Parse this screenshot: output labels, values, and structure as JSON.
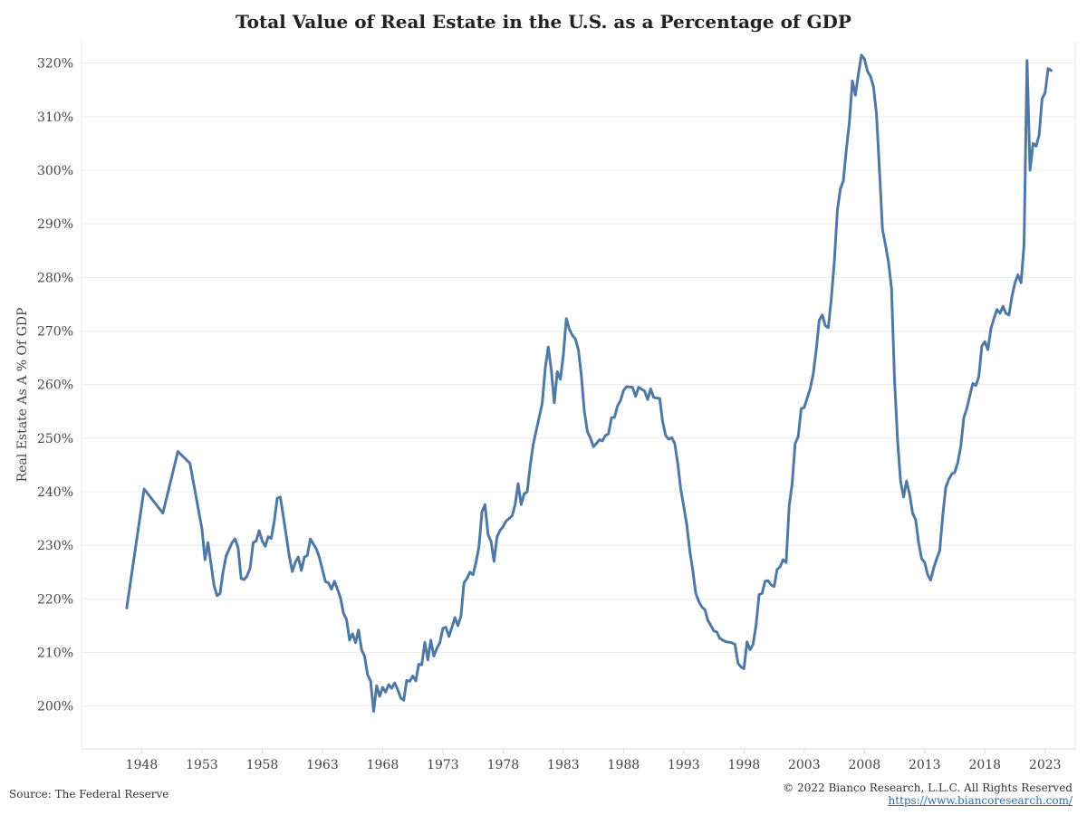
{
  "chart_data": {
    "type": "line",
    "title": "Total Value of Real Estate in the U.S. as a Percentage of GDP",
    "ylabel": "Real Estate As A % Of GDP",
    "xlabel": "",
    "xlim": [
      1943.0,
      2025.5
    ],
    "ylim": [
      192,
      324
    ],
    "x_ticks": [
      1948,
      1953,
      1958,
      1963,
      1968,
      1973,
      1978,
      1983,
      1988,
      1993,
      1998,
      2003,
      2008,
      2013,
      2018,
      2023
    ],
    "x_tick_labels": [
      "1948",
      "1953",
      "1958",
      "1963",
      "1968",
      "1973",
      "1978",
      "1983",
      "1988",
      "1993",
      "1998",
      "2003",
      "2008",
      "2013",
      "2018",
      "2023"
    ],
    "y_ticks": [
      200,
      210,
      220,
      230,
      240,
      250,
      260,
      270,
      280,
      290,
      300,
      310,
      320
    ],
    "y_tick_labels": [
      "200%",
      "210%",
      "220%",
      "230%",
      "240%",
      "250%",
      "260%",
      "270%",
      "280%",
      "290%",
      "300%",
      "310%",
      "320%"
    ],
    "grid": "horizontal",
    "line_color": "#4e79a7",
    "series": [
      {
        "values": [
          [
            1946.75,
            218.3
          ],
          [
            1948.2,
            240.5
          ],
          [
            1949.75,
            236
          ],
          [
            1951.0,
            247.5
          ],
          [
            1952.0,
            245.3
          ],
          [
            1953.0,
            233
          ],
          [
            1953.25,
            227.3
          ],
          [
            1953.5,
            230.5
          ],
          [
            1954.0,
            222.5
          ],
          [
            1954.25,
            220.6
          ],
          [
            1954.5,
            221
          ],
          [
            1954.75,
            225
          ],
          [
            1955.0,
            228
          ],
          [
            1955.5,
            230.5
          ],
          [
            1955.75,
            231.2
          ],
          [
            1956.0,
            229.5
          ],
          [
            1956.25,
            223.8
          ],
          [
            1956.5,
            223.6
          ],
          [
            1956.75,
            224.3
          ],
          [
            1957.0,
            225.8
          ],
          [
            1957.25,
            230.5
          ],
          [
            1957.5,
            230.8
          ],
          [
            1957.75,
            232.7
          ],
          [
            1958.0,
            230.8
          ],
          [
            1958.25,
            229.8
          ],
          [
            1958.5,
            231.6
          ],
          [
            1958.75,
            231.3
          ],
          [
            1959.0,
            234.5
          ],
          [
            1959.25,
            238.8
          ],
          [
            1959.5,
            239
          ],
          [
            1959.75,
            235.5
          ],
          [
            1960.0,
            231.8
          ],
          [
            1960.25,
            227.9
          ],
          [
            1960.5,
            225.1
          ],
          [
            1960.75,
            226.8
          ],
          [
            1961.0,
            227.8
          ],
          [
            1961.25,
            225.3
          ],
          [
            1961.5,
            227.8
          ],
          [
            1961.75,
            228.1
          ],
          [
            1962.0,
            231.2
          ],
          [
            1962.5,
            229.3
          ],
          [
            1962.75,
            227.7
          ],
          [
            1963.25,
            223.2
          ],
          [
            1963.5,
            223
          ],
          [
            1963.75,
            221.8
          ],
          [
            1964.0,
            223.3
          ],
          [
            1964.25,
            221.8
          ],
          [
            1964.5,
            220.2
          ],
          [
            1964.75,
            217.3
          ],
          [
            1965.0,
            216.2
          ],
          [
            1965.25,
            212.3
          ],
          [
            1965.5,
            213.5
          ],
          [
            1965.75,
            211.8
          ],
          [
            1966.0,
            214.2
          ],
          [
            1966.25,
            210.5
          ],
          [
            1966.5,
            209.3
          ],
          [
            1966.75,
            205.8
          ],
          [
            1967.0,
            204.7
          ],
          [
            1967.25,
            199
          ],
          [
            1967.5,
            203.8
          ],
          [
            1967.75,
            201.8
          ],
          [
            1968.0,
            203.5
          ],
          [
            1968.25,
            202.6
          ],
          [
            1968.5,
            204
          ],
          [
            1968.75,
            203.3
          ],
          [
            1969.0,
            204.3
          ],
          [
            1969.25,
            203.1
          ],
          [
            1969.5,
            201.5
          ],
          [
            1969.75,
            201.1
          ],
          [
            1970.0,
            204.8
          ],
          [
            1970.25,
            204.6
          ],
          [
            1970.5,
            205.6
          ],
          [
            1970.75,
            204.7
          ],
          [
            1971.0,
            207.8
          ],
          [
            1971.25,
            207.7
          ],
          [
            1971.5,
            211.9
          ],
          [
            1971.75,
            208.6
          ],
          [
            1972.0,
            212.3
          ],
          [
            1972.25,
            209.3
          ],
          [
            1972.5,
            210.8
          ],
          [
            1972.75,
            211.8
          ],
          [
            1973.0,
            214.5
          ],
          [
            1973.25,
            214.7
          ],
          [
            1973.5,
            213
          ],
          [
            1973.75,
            214.7
          ],
          [
            1974.0,
            216.5
          ],
          [
            1974.25,
            215
          ],
          [
            1974.5,
            216.8
          ],
          [
            1974.75,
            223
          ],
          [
            1975.0,
            223.8
          ],
          [
            1975.25,
            225
          ],
          [
            1975.5,
            224.5
          ],
          [
            1975.75,
            226.8
          ],
          [
            1976.0,
            229.8
          ],
          [
            1976.25,
            236.3
          ],
          [
            1976.5,
            237.6
          ],
          [
            1976.75,
            232
          ],
          [
            1977.0,
            230.7
          ],
          [
            1977.25,
            227
          ],
          [
            1977.5,
            231.6
          ],
          [
            1977.75,
            232.8
          ],
          [
            1978.0,
            233.5
          ],
          [
            1978.25,
            234.5
          ],
          [
            1978.75,
            235.5
          ],
          [
            1979.0,
            237.6
          ],
          [
            1979.25,
            241.5
          ],
          [
            1979.5,
            237.6
          ],
          [
            1979.75,
            239.6
          ],
          [
            1980.0,
            240
          ],
          [
            1980.25,
            244.8
          ],
          [
            1980.5,
            248.8
          ],
          [
            1981.25,
            256.5
          ],
          [
            1981.5,
            263
          ],
          [
            1981.75,
            267
          ],
          [
            1982.0,
            262.7
          ],
          [
            1982.25,
            256.6
          ],
          [
            1982.5,
            262.4
          ],
          [
            1982.75,
            261
          ],
          [
            1983.0,
            265.5
          ],
          [
            1983.25,
            272.3
          ],
          [
            1983.5,
            270.3
          ],
          [
            1983.75,
            269.2
          ],
          [
            1984.0,
            268.5
          ],
          [
            1984.25,
            266.5
          ],
          [
            1984.5,
            261.7
          ],
          [
            1984.75,
            255
          ],
          [
            1985.0,
            251.2
          ],
          [
            1985.25,
            250
          ],
          [
            1985.5,
            248.4
          ],
          [
            1985.75,
            249
          ],
          [
            1986.0,
            249.7
          ],
          [
            1986.25,
            249.5
          ],
          [
            1986.5,
            250.5
          ],
          [
            1986.75,
            250.8
          ],
          [
            1987.0,
            253.8
          ],
          [
            1987.25,
            253.9
          ],
          [
            1987.5,
            256
          ],
          [
            1987.75,
            257
          ],
          [
            1988.0,
            258.9
          ],
          [
            1988.25,
            259.6
          ],
          [
            1988.75,
            259.5
          ],
          [
            1989.0,
            257.8
          ],
          [
            1989.25,
            259.5
          ],
          [
            1989.75,
            258.8
          ],
          [
            1990.0,
            257.2
          ],
          [
            1990.25,
            259.2
          ],
          [
            1990.5,
            257.6
          ],
          [
            1991.0,
            257.4
          ],
          [
            1991.25,
            253
          ],
          [
            1991.5,
            250.5
          ],
          [
            1991.75,
            249.8
          ],
          [
            1992.0,
            250.1
          ],
          [
            1992.25,
            249
          ],
          [
            1992.5,
            245.3
          ],
          [
            1992.75,
            240.5
          ],
          [
            1993.0,
            237.3
          ],
          [
            1993.25,
            233.8
          ],
          [
            1993.5,
            229
          ],
          [
            1993.75,
            225.3
          ],
          [
            1994.0,
            221
          ],
          [
            1994.25,
            219.5
          ],
          [
            1994.5,
            218.5
          ],
          [
            1994.75,
            218
          ],
          [
            1995.0,
            216
          ],
          [
            1995.25,
            215
          ],
          [
            1995.5,
            214
          ],
          [
            1995.75,
            213.8
          ],
          [
            1996.0,
            212.6
          ],
          [
            1996.25,
            212.3
          ],
          [
            1996.5,
            212
          ],
          [
            1997.0,
            211.8
          ],
          [
            1997.25,
            211.5
          ],
          [
            1997.5,
            208
          ],
          [
            1997.75,
            207.3
          ],
          [
            1998.0,
            207
          ],
          [
            1998.25,
            212
          ],
          [
            1998.5,
            210.5
          ],
          [
            1998.75,
            211.5
          ],
          [
            1999.0,
            215
          ],
          [
            1999.25,
            220.8
          ],
          [
            1999.5,
            221
          ],
          [
            1999.75,
            223.3
          ],
          [
            2000.0,
            223.4
          ],
          [
            2000.25,
            222.6
          ],
          [
            2000.5,
            222.3
          ],
          [
            2000.75,
            225.5
          ],
          [
            2001.0,
            226
          ],
          [
            2001.25,
            227.3
          ],
          [
            2001.5,
            226.8
          ],
          [
            2001.75,
            237.3
          ],
          [
            2002.0,
            241.5
          ],
          [
            2002.25,
            249
          ],
          [
            2002.5,
            250.3
          ],
          [
            2002.75,
            255.5
          ],
          [
            2003.0,
            255.7
          ],
          [
            2003.5,
            259.3
          ],
          [
            2003.75,
            262
          ],
          [
            2004.0,
            266.5
          ],
          [
            2004.25,
            272
          ],
          [
            2004.5,
            273
          ],
          [
            2004.75,
            271
          ],
          [
            2005.0,
            270.6
          ],
          [
            2005.25,
            276
          ],
          [
            2005.5,
            283
          ],
          [
            2005.75,
            292.5
          ],
          [
            2006.0,
            296.5
          ],
          [
            2006.25,
            298
          ],
          [
            2006.5,
            304
          ],
          [
            2006.75,
            309
          ],
          [
            2007.0,
            316.7
          ],
          [
            2007.25,
            314
          ],
          [
            2007.5,
            318
          ],
          [
            2007.75,
            321.5
          ],
          [
            2008.0,
            320.8
          ],
          [
            2008.25,
            318.5
          ],
          [
            2008.5,
            317.5
          ],
          [
            2008.75,
            315.6
          ],
          [
            2009.0,
            310.5
          ],
          [
            2009.25,
            300
          ],
          [
            2009.5,
            289
          ],
          [
            2009.75,
            286
          ],
          [
            2010.0,
            282.8
          ],
          [
            2010.25,
            278
          ],
          [
            2010.5,
            261
          ],
          [
            2010.75,
            249.5
          ],
          [
            2011.0,
            242
          ],
          [
            2011.25,
            239
          ],
          [
            2011.5,
            242
          ],
          [
            2011.75,
            239.5
          ],
          [
            2012.0,
            236
          ],
          [
            2012.25,
            234.8
          ],
          [
            2012.5,
            230.5
          ],
          [
            2012.75,
            227.5
          ],
          [
            2013.0,
            226.8
          ],
          [
            2013.25,
            224.5
          ],
          [
            2013.5,
            223.5
          ],
          [
            2013.75,
            225.8
          ],
          [
            2014.0,
            227.5
          ],
          [
            2014.25,
            229
          ],
          [
            2014.5,
            235.5
          ],
          [
            2014.75,
            240.8
          ],
          [
            2015.0,
            242.3
          ],
          [
            2015.25,
            243.3
          ],
          [
            2015.5,
            243.6
          ],
          [
            2015.75,
            245.5
          ],
          [
            2016.0,
            248.5
          ],
          [
            2016.25,
            253.8
          ],
          [
            2016.5,
            255.5
          ],
          [
            2016.75,
            258
          ],
          [
            2017.0,
            260.2
          ],
          [
            2017.25,
            259.8
          ],
          [
            2017.5,
            261.5
          ],
          [
            2017.75,
            267.2
          ],
          [
            2018.0,
            268
          ],
          [
            2018.25,
            266.5
          ],
          [
            2018.5,
            270.4
          ],
          [
            2018.75,
            272.3
          ],
          [
            2019.0,
            274
          ],
          [
            2019.25,
            273.3
          ],
          [
            2019.5,
            274.6
          ],
          [
            2019.75,
            273.3
          ],
          [
            2020.0,
            273
          ],
          [
            2020.25,
            276.5
          ],
          [
            2020.5,
            279
          ],
          [
            2020.75,
            280.5
          ],
          [
            2021.0,
            279
          ],
          [
            2021.25,
            286
          ],
          [
            2021.5,
            320.5
          ],
          [
            2021.75,
            300
          ],
          [
            2022.0,
            305
          ],
          [
            2022.25,
            304.5
          ],
          [
            2022.5,
            306.5
          ],
          [
            2022.75,
            313.3
          ],
          [
            2023.0,
            314.5
          ],
          [
            2023.25,
            319
          ],
          [
            2023.5,
            318.6
          ]
        ]
      }
    ]
  },
  "footer": {
    "source": "Source: The Federal Reserve",
    "copyright": "© 2022 Bianco Research, L.L.C. All Rights Reserved",
    "link": "https://www.biancoresearch.com/"
  }
}
